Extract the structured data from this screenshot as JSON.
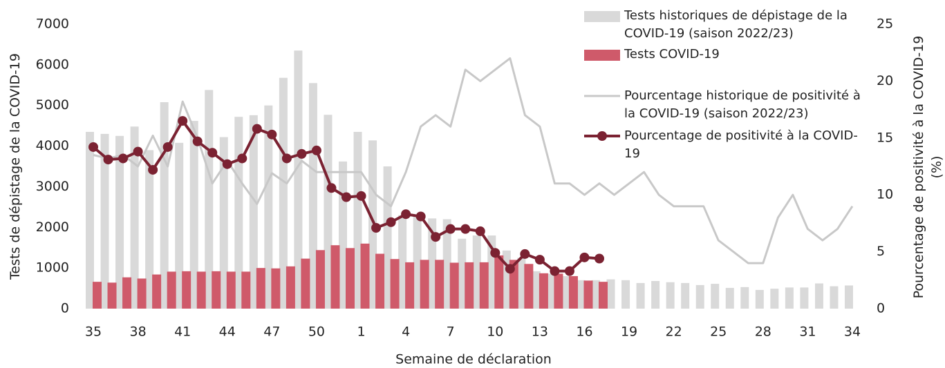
{
  "chart_data": {
    "type": "bar-line",
    "x_label": "Semaine de déclaration",
    "y_label": "Tests de dépistage de la COVID-19",
    "y2_label": "Pourcentage de positivité à la COVID-19 (%)",
    "categories": [
      "35",
      null,
      null,
      "38",
      null,
      null,
      "41",
      null,
      null,
      "44",
      null,
      null,
      "47",
      null,
      null,
      "50",
      null,
      null,
      "1",
      null,
      null,
      "4",
      null,
      null,
      "7",
      null,
      null,
      "10",
      null,
      null,
      "13",
      null,
      null,
      "16",
      null,
      null,
      "19",
      null,
      null,
      "22",
      null,
      null,
      "25",
      null,
      null,
      "28",
      null,
      null,
      "31",
      null,
      null,
      "34"
    ],
    "ylim": [
      0,
      7000
    ],
    "yticks": [
      0,
      1000,
      2000,
      3000,
      4000,
      5000,
      6000,
      7000
    ],
    "y2lim": [
      0,
      25
    ],
    "y2ticks": [
      0,
      5,
      10,
      15,
      20,
      25
    ],
    "legend": "top-right",
    "series": [
      {
        "name": "Tests historiques de dépistage de la COVID-19 (saison 2022/23)",
        "type": "bar",
        "color": "#d9d9d9",
        "values": [
          4350,
          4300,
          4250,
          4480,
          3900,
          5080,
          4080,
          4620,
          5380,
          4220,
          4720,
          4760,
          5000,
          5680,
          6350,
          5550,
          4770,
          3620,
          4350,
          4140,
          3500,
          2300,
          2300,
          2220,
          2200,
          1720,
          1800,
          1800,
          1430,
          1250,
          920,
          860,
          800,
          700,
          700,
          720,
          700,
          630,
          680,
          650,
          630,
          580,
          610,
          510,
          530,
          460,
          490,
          520,
          520,
          620,
          550,
          570
        ]
      },
      {
        "name": "Tests COVID-19",
        "type": "bar",
        "color": "#cf5a6a",
        "values": [
          660,
          640,
          770,
          740,
          840,
          910,
          920,
          910,
          920,
          910,
          910,
          1000,
          990,
          1040,
          1230,
          1440,
          1560,
          1490,
          1600,
          1350,
          1220,
          1140,
          1200,
          1200,
          1130,
          1140,
          1140,
          1310,
          1200,
          1100,
          870,
          860,
          800,
          690,
          660,
          null,
          null,
          null,
          null,
          null,
          null,
          null,
          null,
          null,
          null,
          null,
          null,
          null,
          null,
          null,
          null,
          null
        ]
      },
      {
        "name": "Pourcentage historique de positivité à la COVID-19 (saison 2022/23)",
        "type": "line",
        "axis": "y2",
        "color": "#c8c8c8",
        "values": [
          13.5,
          13.2,
          13.5,
          12.5,
          15.2,
          12.5,
          18.2,
          15,
          11,
          13,
          11,
          9.2,
          11.9,
          11,
          13,
          12,
          12,
          12,
          12,
          10,
          9,
          12,
          16,
          17,
          16,
          21,
          20,
          21,
          22,
          17,
          16,
          11,
          11,
          10,
          11,
          10,
          11,
          12,
          10,
          9,
          9,
          9,
          6,
          5,
          4,
          4,
          8,
          10,
          7,
          6,
          7,
          9
        ]
      },
      {
        "name": "Pourcentage de positivité à la COVID-19",
        "type": "line",
        "axis": "y2",
        "color": "#7b2232",
        "markers": true,
        "values": [
          14.2,
          13.1,
          13.2,
          13.8,
          12.2,
          14.2,
          16.5,
          14.7,
          13.7,
          12.7,
          13.2,
          15.8,
          15.3,
          13.2,
          13.6,
          13.9,
          10.6,
          9.8,
          9.9,
          7.1,
          7.6,
          8.3,
          8.1,
          6.3,
          7.0,
          7.0,
          6.8,
          4.9,
          3.5,
          4.8,
          4.3,
          3.3,
          3.3,
          4.5,
          4.4,
          null,
          null,
          null,
          null,
          null,
          null,
          null,
          null,
          null,
          null,
          null,
          null,
          null,
          null,
          null,
          null,
          null
        ]
      }
    ]
  }
}
